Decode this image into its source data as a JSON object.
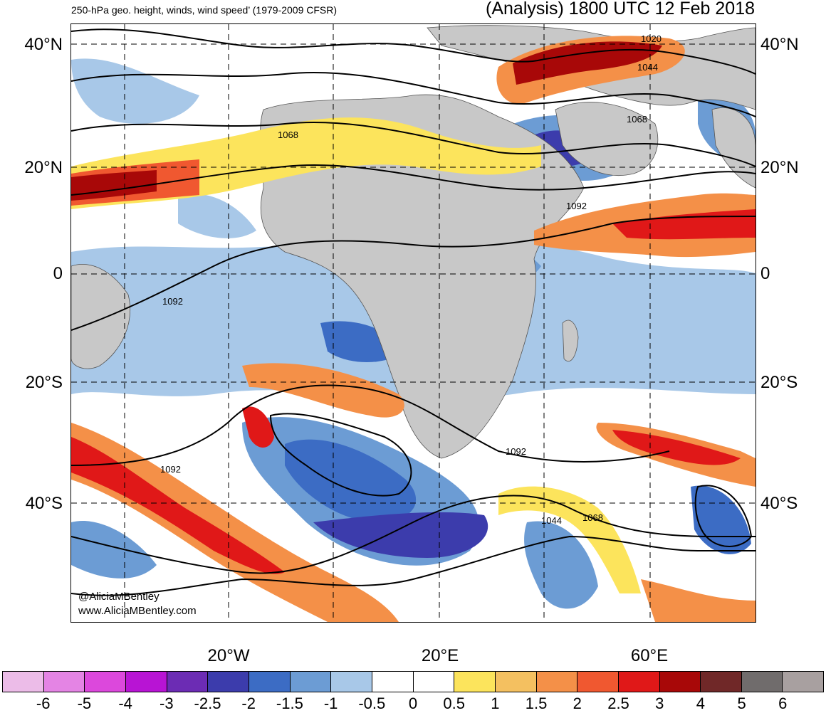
{
  "header": {
    "left_title": "250-hPa geo. height, winds, wind speed’ (1979-2009 CFSR)",
    "right_title": "(Analysis) 1800 UTC 12 Feb 2018"
  },
  "axes": {
    "lat_labels": [
      "40°N",
      "20°N",
      "0",
      "20°S",
      "40°S"
    ],
    "lon_labels": [
      "20°W",
      "20°E",
      "60°E"
    ]
  },
  "contours": {
    "labels": [
      "1020",
      "1044",
      "1068",
      "1068",
      "1092",
      "1092",
      "1092",
      "1092",
      "1044",
      "1068"
    ]
  },
  "colorbar": {
    "ticks": [
      "-6",
      "-5",
      "-4",
      "-3",
      "-2.5",
      "-2",
      "-1.5",
      "-1",
      "-0.5",
      "0",
      "0.5",
      "1",
      "1.5",
      "2",
      "2.5",
      "3",
      "4",
      "5",
      "6"
    ],
    "colors": [
      "#ecbce8",
      "#e484e4",
      "#dc48dc",
      "#b814d4",
      "#6c2cb4",
      "#3c3cac",
      "#3c6cc4",
      "#6c9cd4",
      "#a8c8e8",
      "#ffffff",
      "#ffffff",
      "#fce45c",
      "#f4c060",
      "#f49048",
      "#f05830",
      "#e01818",
      "#a80808",
      "#702828",
      "#706c6c",
      "#a8a0a0"
    ]
  },
  "credits": {
    "handle": "@AliciaMBentley",
    "site": "www.AliciaMBentley.com"
  }
}
